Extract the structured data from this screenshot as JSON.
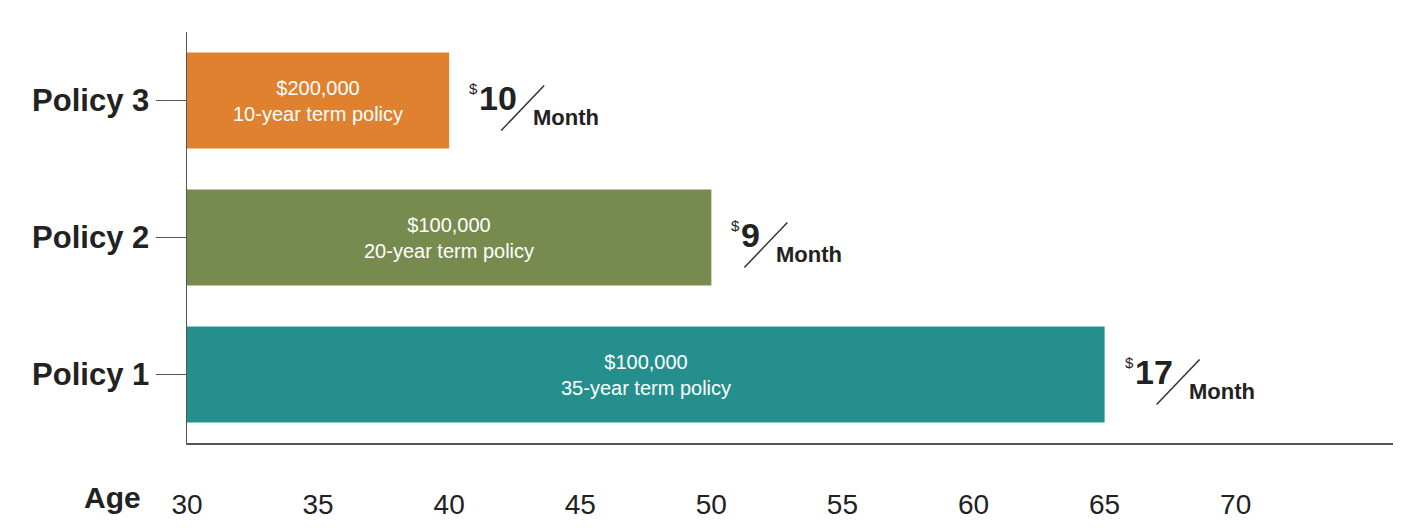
{
  "chart_data": {
    "type": "bar",
    "orientation": "horizontal",
    "categories": [
      "Policy 1",
      "Policy 2",
      "Policy 3"
    ],
    "values": [
      65,
      50,
      40
    ],
    "colors": [
      "#258f8e",
      "#788b4e",
      "#e0812f"
    ],
    "xlabel": "Age",
    "xlim": [
      30,
      76
    ],
    "xticks": [
      30,
      35,
      40,
      45,
      50,
      55,
      60,
      65,
      70
    ],
    "grid": false,
    "annotations": [
      {
        "category": "Policy 1",
        "lines": [
          "$100,000",
          "35-year term policy"
        ],
        "currency": "$",
        "amount": 17,
        "unit": "Month"
      },
      {
        "category": "Policy 2",
        "lines": [
          "$100,000",
          "20-year term policy"
        ],
        "currency": "$",
        "amount": 9,
        "unit": "Month"
      },
      {
        "category": "Policy 3",
        "lines": [
          "$200,000",
          "10-year term policy"
        ],
        "currency": "$",
        "amount": 10,
        "unit": "Month"
      }
    ]
  }
}
